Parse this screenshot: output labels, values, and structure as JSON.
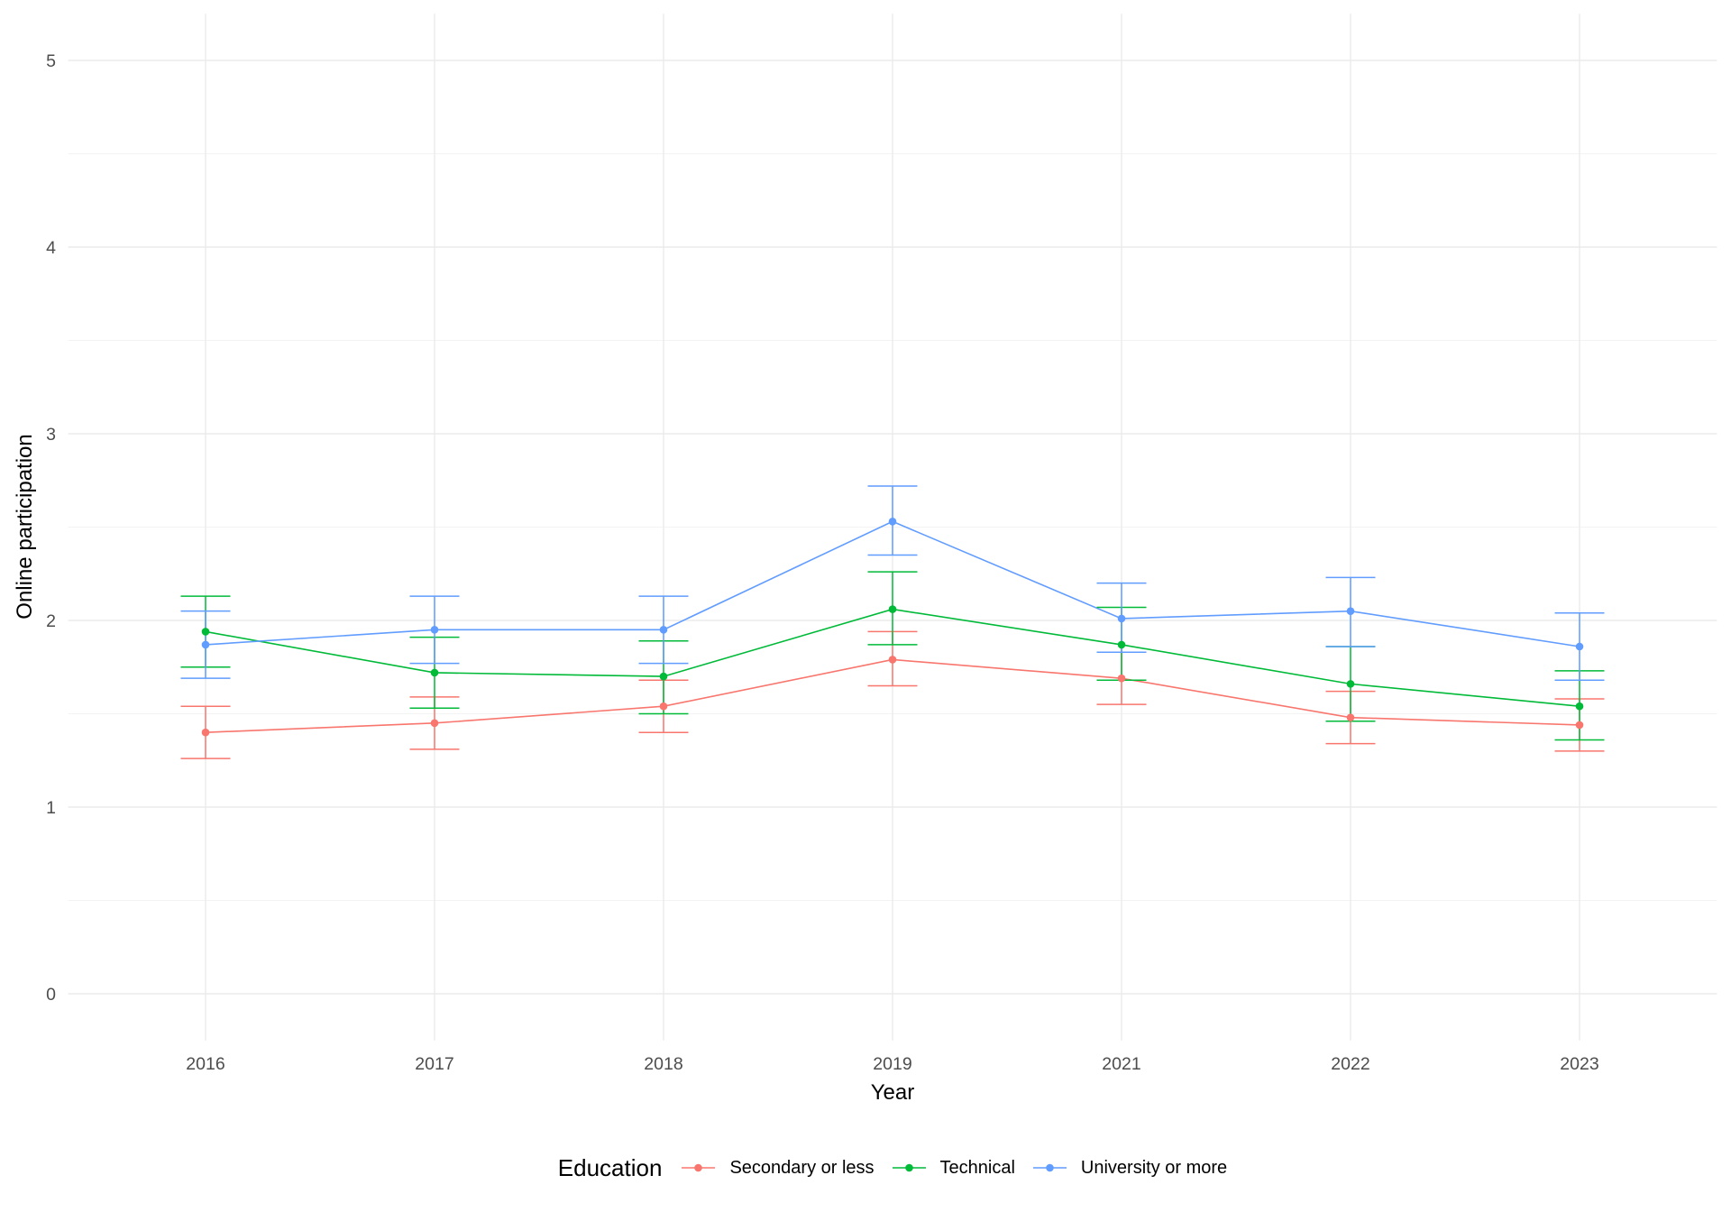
{
  "chart_data": {
    "type": "line",
    "xlabel": "Year",
    "ylabel": "Online participation",
    "categories": [
      "2016",
      "2017",
      "2018",
      "2019",
      "2021",
      "2022",
      "2023"
    ],
    "y_ticks": [
      "0",
      "1",
      "2",
      "3",
      "4",
      "5"
    ],
    "ylim": [
      0,
      5
    ],
    "grid": true,
    "legend": {
      "title": "Education",
      "position": "bottom"
    },
    "series": [
      {
        "name": "Secondary or less",
        "color": "#F8766D",
        "values": [
          1.4,
          1.45,
          1.54,
          1.79,
          1.69,
          1.48,
          1.44
        ],
        "lower": [
          1.26,
          1.31,
          1.4,
          1.65,
          1.55,
          1.34,
          1.3
        ],
        "upper": [
          1.54,
          1.59,
          1.68,
          1.94,
          1.83,
          1.62,
          1.58
        ]
      },
      {
        "name": "Technical",
        "color": "#00BA38",
        "values": [
          1.94,
          1.72,
          1.7,
          2.06,
          1.87,
          1.66,
          1.54
        ],
        "lower": [
          1.75,
          1.53,
          1.5,
          1.87,
          1.68,
          1.46,
          1.36
        ],
        "upper": [
          2.13,
          1.91,
          1.89,
          2.26,
          2.07,
          1.86,
          1.73
        ]
      },
      {
        "name": "University or more",
        "color": "#619CFF",
        "values": [
          1.87,
          1.95,
          1.95,
          2.53,
          2.01,
          2.05,
          1.86
        ],
        "lower": [
          1.69,
          1.77,
          1.77,
          2.35,
          1.83,
          1.86,
          1.68
        ],
        "upper": [
          2.05,
          2.13,
          2.13,
          2.72,
          2.2,
          2.23,
          2.04
        ]
      }
    ]
  }
}
